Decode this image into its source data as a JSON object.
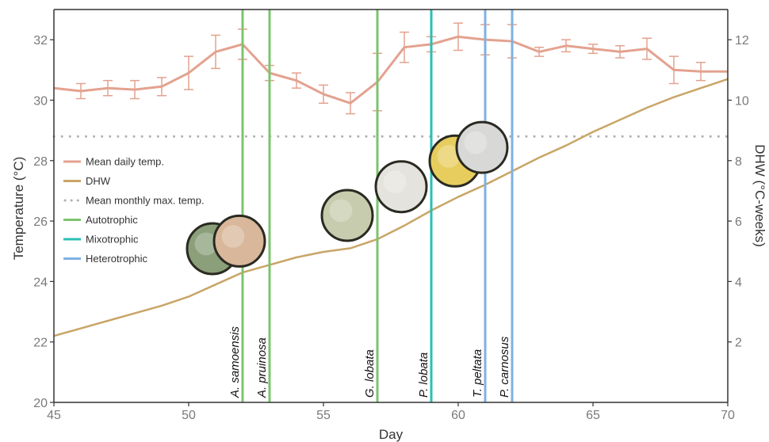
{
  "chart_data": {
    "type": "line",
    "xlabel": "Day",
    "ylabel_left": "Temperature (°C)",
    "ylabel_right": "DHW (°C-weeks)",
    "xlim": [
      45,
      70
    ],
    "ylim_left": [
      20,
      33
    ],
    "ylim_right": [
      0,
      13
    ],
    "xticks": [
      45,
      50,
      55,
      60,
      65,
      70
    ],
    "yticks_left": [
      20,
      22,
      24,
      26,
      28,
      30,
      32
    ],
    "yticks_right": [
      2,
      4,
      6,
      8,
      10,
      12
    ],
    "grid": false,
    "legend_position": "center-left",
    "series": [
      {
        "name": "Mean daily temp.",
        "axis": "left",
        "color": "#e3a28f",
        "x": [
          45,
          46,
          47,
          48,
          49,
          50,
          51,
          52,
          53,
          54,
          55,
          56,
          57,
          58,
          59,
          60,
          61,
          62,
          63,
          64,
          65,
          66,
          67,
          68,
          69,
          70
        ],
        "y": [
          30.4,
          30.3,
          30.4,
          30.35,
          30.45,
          30.9,
          31.6,
          31.85,
          30.9,
          30.65,
          30.2,
          29.9,
          30.6,
          31.75,
          31.85,
          32.1,
          32.0,
          31.95,
          31.6,
          31.8,
          31.7,
          31.6,
          31.7,
          31.0,
          30.95,
          30.95
        ],
        "err": [
          null,
          0.25,
          0.25,
          0.3,
          0.3,
          0.55,
          0.55,
          0.5,
          0.25,
          0.25,
          0.3,
          0.35,
          0.95,
          0.5,
          0.25,
          0.45,
          0.5,
          0.55,
          0.15,
          0.2,
          0.15,
          0.2,
          0.35,
          0.45,
          0.3,
          null
        ]
      },
      {
        "name": "DHW",
        "axis": "right",
        "color": "#c9a567",
        "x": [
          45,
          46,
          47,
          48,
          49,
          50,
          51,
          52,
          53,
          54,
          55,
          56,
          57,
          58,
          59,
          60,
          61,
          62,
          63,
          64,
          65,
          66,
          67,
          68,
          69,
          70
        ],
        "y": [
          2.2,
          2.45,
          2.7,
          2.95,
          3.2,
          3.5,
          3.9,
          4.3,
          4.55,
          4.8,
          4.98,
          5.1,
          5.4,
          5.85,
          6.35,
          6.8,
          7.2,
          7.65,
          8.1,
          8.5,
          8.95,
          9.35,
          9.75,
          10.1,
          10.4,
          10.7
        ]
      },
      {
        "name": "Mean monthly max. temp.",
        "axis": "left",
        "color": "#b0b0b0",
        "style": "dotted",
        "y_constant": 28.8
      }
    ],
    "vertical_lines": [
      {
        "x": 52,
        "group": "Autotrophic",
        "label": "A. samoensis",
        "color": "#7cc46f",
        "photo": "#8a9f7a"
      },
      {
        "x": 53,
        "group": "Autotrophic",
        "label": "A. pruinosa",
        "color": "#7cc46f",
        "photo": "#d8b79a"
      },
      {
        "x": 57,
        "group": "Autotrophic",
        "label": "G. lobata",
        "color": "#7cc46f",
        "photo": "#c8ccae"
      },
      {
        "x": 59,
        "group": "Mixotrophic",
        "label": "P. lobata",
        "color": "#2bbfb3",
        "photo": "#e5e3dd"
      },
      {
        "x": 61,
        "group": "Heterotrophic",
        "label": "T. peltata",
        "color": "#7fb1e3",
        "photo": "#e7cd5e"
      },
      {
        "x": 62,
        "group": "Heterotrophic",
        "label": "P. carnosus",
        "color": "#7fb1e3",
        "photo": "#d8d8d6"
      }
    ],
    "legend": [
      {
        "label": "Mean daily temp.",
        "color": "#e3a28f",
        "style": "line"
      },
      {
        "label": "DHW",
        "color": "#c9a567",
        "style": "line"
      },
      {
        "label": "Mean monthly max. temp.",
        "color": "#b0b0b0",
        "style": "dotted"
      },
      {
        "label": "Autotrophic",
        "color": "#7cc46f",
        "style": "line"
      },
      {
        "label": "Mixotrophic",
        "color": "#2bbfb3",
        "style": "line"
      },
      {
        "label": "Heterotrophic",
        "color": "#7fb1e3",
        "style": "line"
      }
    ]
  }
}
